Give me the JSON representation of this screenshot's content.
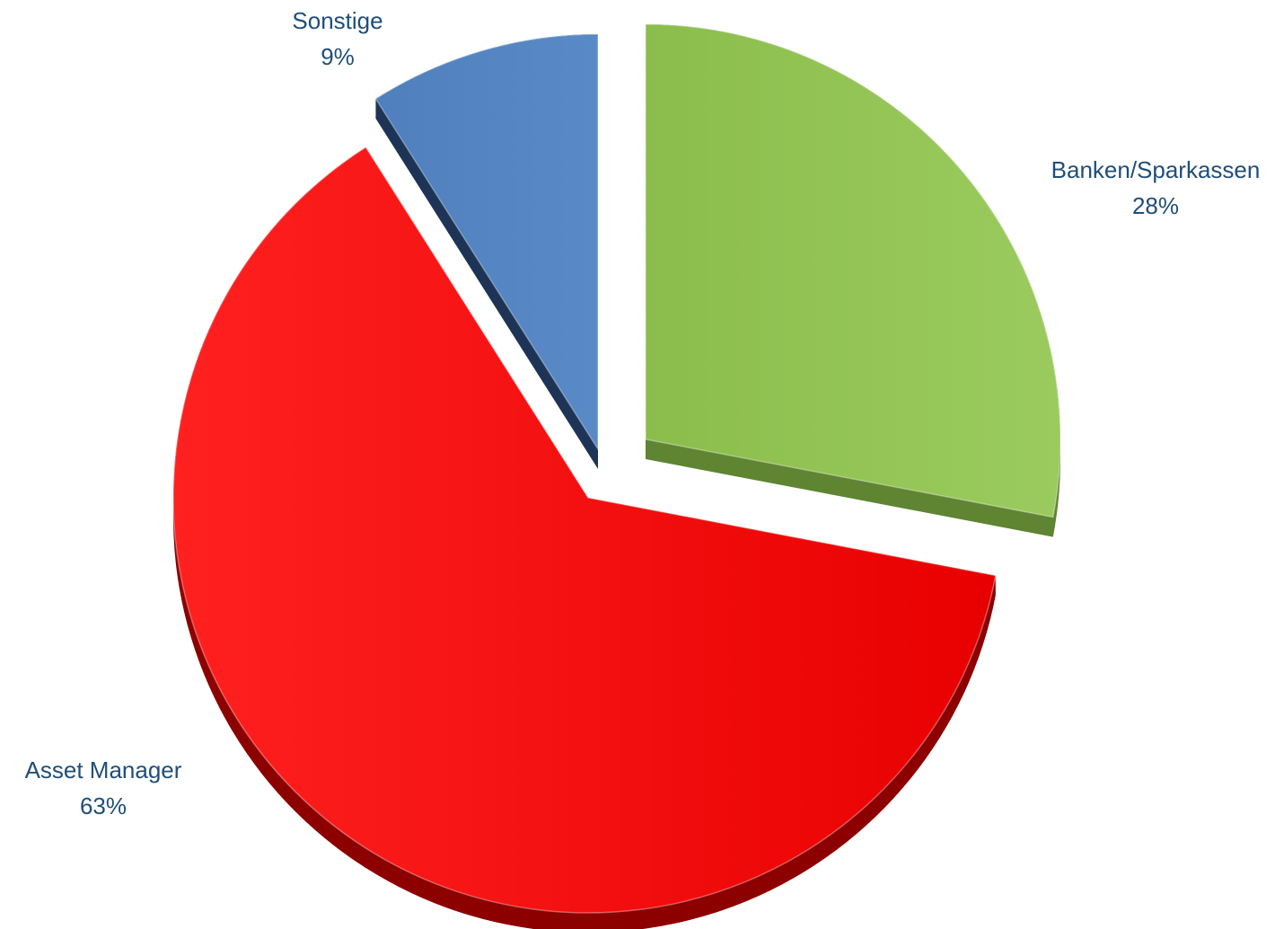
{
  "chart_data": {
    "type": "pie",
    "style": "3d-exploded",
    "slices": [
      {
        "name": "Banken/Sparkassen",
        "value": 28,
        "label": "28%",
        "color": "#92c353",
        "side_color": "#5f8432"
      },
      {
        "name": "Asset Manager",
        "value": 63,
        "label": "63%",
        "color": "#f20a0a",
        "side_color": "#8c0000"
      },
      {
        "name": "Sonstige",
        "value": 9,
        "label": "9%",
        "color": "#5585c0",
        "side_color": "#1e3456"
      }
    ],
    "legend": "none",
    "data_labels": "outside"
  }
}
